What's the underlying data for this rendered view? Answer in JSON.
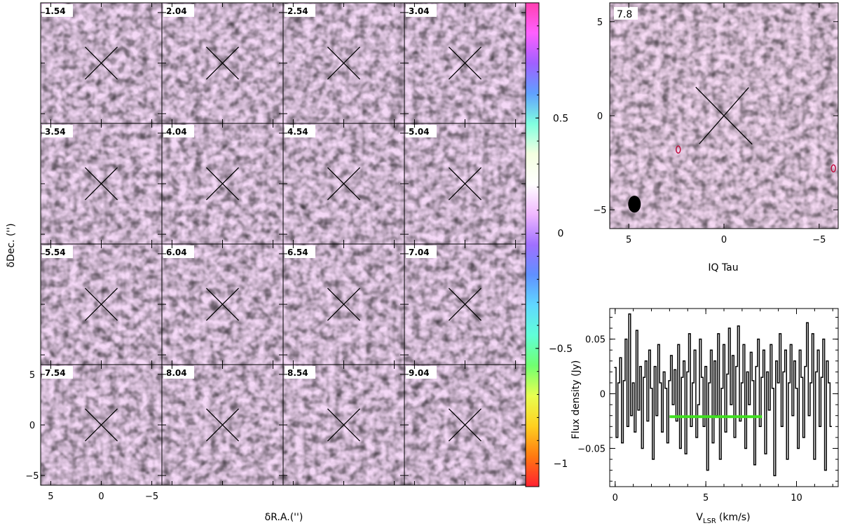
{
  "chart_data": [
    {
      "type": "heatmap",
      "panel": "channel-maps",
      "xlabel": "δR.A.('')",
      "ylabel": "δDec. ('')",
      "xlim": [
        6,
        -6
      ],
      "ylim": [
        -6,
        6
      ],
      "x_ticks": [
        "5",
        "0",
        "−5"
      ],
      "y_ticks": [
        "5",
        "0",
        "−5"
      ],
      "channel_labels": [
        "1.54",
        "2.04",
        "2.54",
        "3.04",
        "3.54",
        "4.04",
        "4.54",
        "5.04",
        "5.54",
        "6.04",
        "6.54",
        "7.04",
        "7.54",
        "8.04",
        "8.54",
        "9.04"
      ],
      "colorbar": {
        "min": -1.1,
        "max": 1.0,
        "ticks": [
          "0.5",
          "0",
          "−0.5",
          "−1"
        ],
        "colors": [
          "#ff2030",
          "#ff7a10",
          "#ffd020",
          "#e8ff50",
          "#70ff70",
          "#60ffd8",
          "#60d8ff",
          "#6090ff",
          "#a070ff",
          "#f0b8ff",
          "#ffffff",
          "#f4ffe0",
          "#80ffe0",
          "#60a0ff",
          "#a060ff",
          "#ff60ff",
          "#ff40b0"
        ]
      }
    },
    {
      "type": "heatmap",
      "panel": "moment-map",
      "title": "IQ Tau",
      "channel_label": "7.8",
      "xlim": [
        6,
        -6
      ],
      "ylim": [
        -6,
        6
      ],
      "x_ticks": [
        "5",
        "0",
        "−5"
      ],
      "y_ticks": [
        "5",
        "0",
        "−5"
      ]
    },
    {
      "type": "line",
      "panel": "spectrum",
      "xlabel_main": "V",
      "xlabel_sub": "LSR",
      "xlabel_unit": "(km/s)",
      "ylabel": "Flux density (Jy)",
      "xlim": [
        -0.3,
        12.3
      ],
      "ylim": [
        -0.085,
        0.078
      ],
      "x_ticks": [
        "0",
        "5",
        "10"
      ],
      "y_ticks": [
        "0.05",
        "0",
        "−0.05"
      ],
      "highlight": {
        "x_start": 3.0,
        "x_end": 8.1,
        "y": -0.021,
        "color": "#40e020"
      },
      "x": [
        0.0,
        0.1,
        0.2,
        0.3,
        0.4,
        0.5,
        0.6,
        0.7,
        0.8,
        0.9,
        1.0,
        1.1,
        1.2,
        1.3,
        1.4,
        1.5,
        1.6,
        1.7,
        1.8,
        1.9,
        2.0,
        2.1,
        2.2,
        2.3,
        2.4,
        2.5,
        2.6,
        2.7,
        2.8,
        2.9,
        3.0,
        3.1,
        3.2,
        3.3,
        3.4,
        3.5,
        3.6,
        3.7,
        3.8,
        3.9,
        4.0,
        4.1,
        4.2,
        4.3,
        4.4,
        4.5,
        4.6,
        4.7,
        4.8,
        4.9,
        5.0,
        5.1,
        5.2,
        5.3,
        5.4,
        5.5,
        5.6,
        5.7,
        5.8,
        5.9,
        6.0,
        6.1,
        6.2,
        6.3,
        6.4,
        6.5,
        6.6,
        6.7,
        6.8,
        6.9,
        7.0,
        7.1,
        7.2,
        7.3,
        7.4,
        7.5,
        7.6,
        7.7,
        7.8,
        7.9,
        8.0,
        8.1,
        8.2,
        8.3,
        8.4,
        8.5,
        8.6,
        8.7,
        8.8,
        8.9,
        9.0,
        9.1,
        9.2,
        9.3,
        9.4,
        9.5,
        9.6,
        9.7,
        9.8,
        9.9,
        10.0,
        10.1,
        10.2,
        10.3,
        10.4,
        10.5,
        10.6,
        10.7,
        10.8,
        10.9,
        11.0,
        11.1,
        11.2,
        11.3,
        11.4,
        11.5,
        11.6,
        11.7,
        11.8,
        11.9
      ],
      "values": [
        0.024,
        -0.04,
        0.01,
        0.033,
        -0.045,
        0.012,
        0.05,
        -0.03,
        0.073,
        -0.02,
        0.01,
        -0.035,
        0.058,
        -0.015,
        0.025,
        -0.05,
        0.015,
        0.03,
        -0.025,
        0.04,
        0.005,
        -0.06,
        0.025,
        -0.02,
        0.045,
        0.01,
        -0.035,
        0.02,
        0.005,
        -0.045,
        0.012,
        0.035,
        -0.01,
        0.022,
        -0.025,
        0.045,
        -0.05,
        0.015,
        0.03,
        -0.055,
        0.02,
        0.055,
        -0.03,
        0.01,
        0.04,
        -0.04,
        -0.01,
        0.05,
        0.015,
        -0.03,
        0.025,
        -0.07,
        0.01,
        0.04,
        -0.045,
        0.03,
        -0.02,
        0.055,
        -0.06,
        0.005,
        0.045,
        -0.035,
        0.018,
        0.06,
        -0.01,
        0.035,
        -0.04,
        0.025,
        0.062,
        -0.025,
        0.01,
        0.045,
        -0.05,
        0.02,
        -0.01,
        0.038,
        0.012,
        -0.065,
        0.025,
        0.05,
        -0.03,
        0.015,
        0.04,
        -0.055,
        0.02,
        -0.015,
        0.045,
        0.005,
        -0.075,
        0.03,
        0.01,
        0.055,
        -0.03,
        0.02,
        0.04,
        -0.06,
        0.01,
        0.045,
        -0.02,
        0.03,
        0.005,
        -0.05,
        0.04,
        0.015,
        -0.04,
        0.025,
        0.065,
        -0.02,
        0.01,
        0.055,
        -0.06,
        0.02,
        0.04,
        -0.03,
        0.015,
        0.05,
        -0.07,
        0.03,
        0.01,
        -0.03
      ]
    }
  ]
}
